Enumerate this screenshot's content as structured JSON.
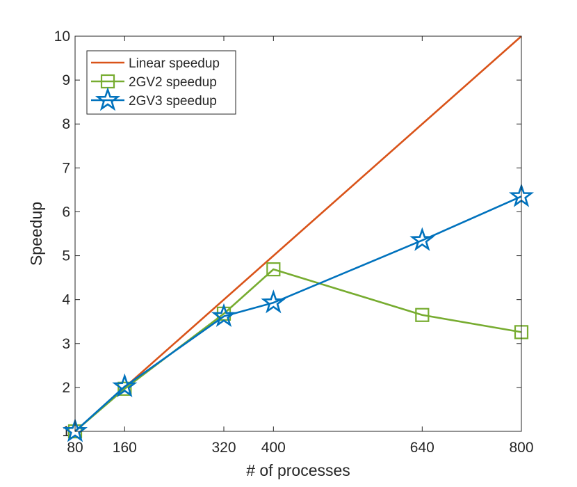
{
  "chart_data": {
    "type": "line",
    "title": "",
    "xlabel": "# of processes",
    "ylabel": "Speedup",
    "xlim": [
      80,
      800
    ],
    "ylim": [
      1,
      10
    ],
    "xticks": [
      80,
      160,
      320,
      400,
      640,
      800
    ],
    "yticks": [
      1,
      2,
      3,
      4,
      5,
      6,
      7,
      8,
      9,
      10
    ],
    "grid": false,
    "legend_position": "top-left",
    "series": [
      {
        "name": "Linear speedup",
        "marker": "none",
        "color": "#D95319",
        "x": [
          80,
          800
        ],
        "y": [
          1,
          10
        ]
      },
      {
        "name": "2GV2 speedup",
        "marker": "square",
        "color": "#77AC30",
        "x": [
          80,
          160,
          320,
          400,
          640,
          800
        ],
        "y": [
          1.0,
          1.97,
          3.68,
          4.69,
          3.65,
          3.26
        ]
      },
      {
        "name": "2GV3 speedup",
        "marker": "star",
        "color": "#0072BD",
        "x": [
          80,
          160,
          320,
          400,
          640,
          800
        ],
        "y": [
          1.0,
          2.02,
          3.62,
          3.93,
          5.35,
          6.35
        ]
      }
    ]
  }
}
